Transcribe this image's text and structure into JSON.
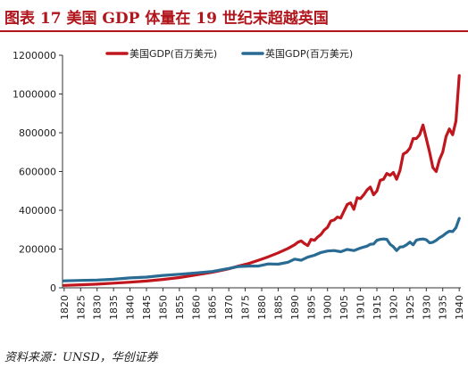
{
  "title": "图表 17   美国 GDP 体量在 19 世纪末超越英国",
  "source": "资料来源：UNSD，华创证券",
  "colors": {
    "us": "#c0171f",
    "uk": "#2a6b94",
    "title": "#b0161c"
  },
  "chart_data": {
    "type": "line",
    "ylim": [
      0,
      1200000
    ],
    "yticks": [
      0,
      200000,
      400000,
      600000,
      800000,
      1000000,
      1200000
    ],
    "xlim": [
      1820,
      1940
    ],
    "xticks": [
      1820,
      1825,
      1830,
      1835,
      1840,
      1845,
      1850,
      1855,
      1860,
      1865,
      1870,
      1875,
      1880,
      1885,
      1890,
      1895,
      1900,
      1905,
      1910,
      1915,
      1920,
      1925,
      1930,
      1935,
      1940
    ],
    "legend_position": "top",
    "series": [
      {
        "name": "美国GDP(百万美元)",
        "color": "#c0171f",
        "x": [
          1820,
          1825,
          1830,
          1835,
          1840,
          1845,
          1850,
          1855,
          1860,
          1865,
          1870,
          1873,
          1876,
          1879,
          1882,
          1885,
          1888,
          1890,
          1891,
          1892,
          1893,
          1894,
          1895,
          1896,
          1897,
          1898,
          1899,
          1900,
          1901,
          1902,
          1903,
          1904,
          1905,
          1906,
          1907,
          1908,
          1909,
          1910,
          1911,
          1912,
          1913,
          1914,
          1915,
          1916,
          1917,
          1918,
          1919,
          1920,
          1921,
          1922,
          1923,
          1924,
          1925,
          1926,
          1927,
          1928,
          1929,
          1930,
          1931,
          1932,
          1933,
          1934,
          1935,
          1936,
          1937,
          1938,
          1939,
          1940
        ],
        "y": [
          12500,
          15500,
          19000,
          24000,
          29000,
          35000,
          43000,
          53000,
          66000,
          80000,
          98000,
          112000,
          125000,
          142000,
          160000,
          180000,
          203000,
          222000,
          235000,
          242000,
          228000,
          218000,
          250000,
          245000,
          262000,
          275000,
          298000,
          312000,
          345000,
          350000,
          365000,
          360000,
          395000,
          430000,
          438000,
          405000,
          465000,
          460000,
          480000,
          505000,
          520000,
          480000,
          500000,
          555000,
          560000,
          590000,
          580000,
          595000,
          560000,
          605000,
          690000,
          700000,
          720000,
          770000,
          770000,
          790000,
          840000,
          770000,
          700000,
          620000,
          600000,
          660000,
          700000,
          780000,
          820000,
          790000,
          860000,
          1095000
        ]
      },
      {
        "name": "英国GDP(百万美元)",
        "color": "#2a6b94",
        "x": [
          1820,
          1825,
          1830,
          1835,
          1840,
          1845,
          1850,
          1855,
          1860,
          1865,
          1870,
          1873,
          1876,
          1879,
          1882,
          1885,
          1888,
          1890,
          1892,
          1894,
          1896,
          1898,
          1900,
          1902,
          1904,
          1906,
          1908,
          1910,
          1912,
          1913,
          1914,
          1915,
          1916,
          1917,
          1918,
          1919,
          1920,
          1921,
          1922,
          1923,
          1924,
          1925,
          1926,
          1927,
          1928,
          1929,
          1930,
          1931,
          1932,
          1933,
          1934,
          1935,
          1936,
          1937,
          1938,
          1939,
          1940
        ],
        "y": [
          36000,
          38000,
          40000,
          44000,
          51000,
          55000,
          64000,
          70000,
          77000,
          84000,
          100000,
          110000,
          112000,
          112000,
          123000,
          122000,
          132000,
          148000,
          142000,
          158000,
          168000,
          182000,
          190000,
          192000,
          186000,
          198000,
          192000,
          205000,
          215000,
          225000,
          226000,
          245000,
          250000,
          252000,
          250000,
          225000,
          212000,
          192000,
          210000,
          212000,
          222000,
          236000,
          222000,
          246000,
          250000,
          252000,
          248000,
          232000,
          235000,
          245000,
          258000,
          268000,
          282000,
          292000,
          290000,
          310000,
          358000
        ]
      }
    ]
  }
}
